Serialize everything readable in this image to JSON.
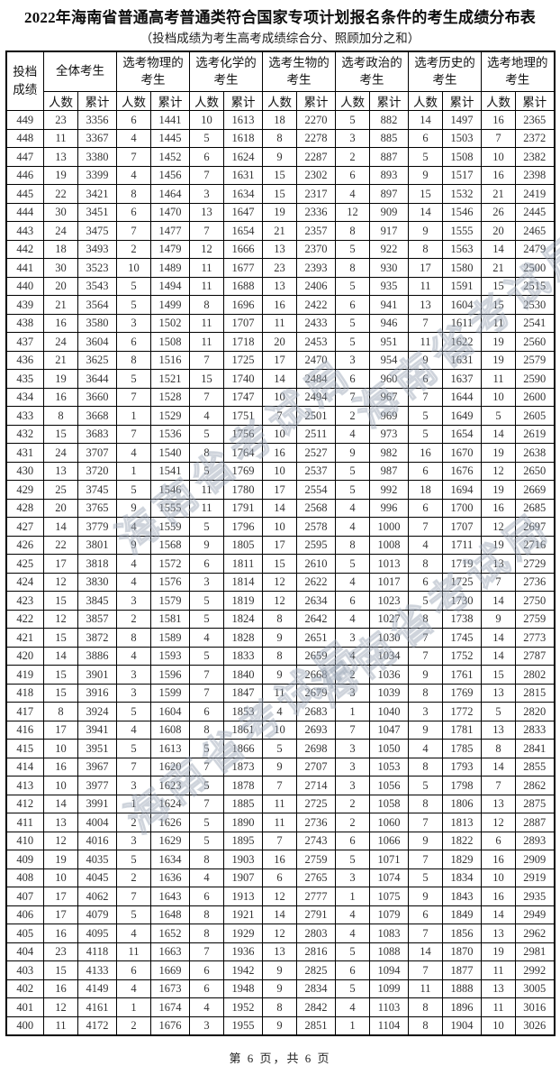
{
  "page": {
    "title": "2022年海南省普通高考普通类符合国家专项计划报名条件的考生成绩分布表",
    "subtitle": "（投档成绩为考生高考成绩综合分、照顾加分之和）",
    "footer": "第 6 页，共 6 页",
    "watermark_text": "海南省考试局"
  },
  "table": {
    "score_header": "投档\n成绩",
    "groups": [
      "全体考生",
      "选考物理的\n考生",
      "选考化学的\n考生",
      "选考生物的\n考生",
      "选考政治的\n考生",
      "选考历史的\n考生",
      "选考地理的\n考生"
    ],
    "sub_headers": {
      "count": "人数",
      "cum": "累计"
    },
    "rows": [
      [
        449,
        23,
        3356,
        6,
        1441,
        10,
        1613,
        18,
        2270,
        5,
        882,
        14,
        1497,
        16,
        2365
      ],
      [
        448,
        11,
        3367,
        4,
        1445,
        5,
        1618,
        8,
        2278,
        3,
        885,
        6,
        1503,
        7,
        2372
      ],
      [
        447,
        13,
        3380,
        7,
        1452,
        6,
        1624,
        9,
        2287,
        2,
        887,
        5,
        1508,
        10,
        2382
      ],
      [
        446,
        19,
        3399,
        4,
        1456,
        7,
        1631,
        15,
        2302,
        6,
        893,
        9,
        1517,
        16,
        2398
      ],
      [
        445,
        22,
        3421,
        8,
        1464,
        3,
        1634,
        15,
        2317,
        4,
        897,
        15,
        1532,
        21,
        2419
      ],
      [
        444,
        30,
        3451,
        6,
        1470,
        13,
        1647,
        19,
        2336,
        12,
        909,
        14,
        1546,
        26,
        2445
      ],
      [
        443,
        24,
        3475,
        7,
        1477,
        7,
        1654,
        21,
        2357,
        8,
        917,
        9,
        1555,
        20,
        2465
      ],
      [
        442,
        18,
        3493,
        2,
        1479,
        12,
        1666,
        13,
        2370,
        5,
        922,
        8,
        1563,
        14,
        2479
      ],
      [
        441,
        30,
        3523,
        10,
        1489,
        11,
        1677,
        23,
        2393,
        8,
        930,
        17,
        1580,
        21,
        2500
      ],
      [
        440,
        20,
        3543,
        5,
        1494,
        11,
        1688,
        13,
        2406,
        5,
        935,
        11,
        1591,
        15,
        2515
      ],
      [
        439,
        21,
        3564,
        5,
        1499,
        8,
        1696,
        16,
        2422,
        6,
        941,
        13,
        1604,
        15,
        2530
      ],
      [
        438,
        16,
        3580,
        3,
        1502,
        11,
        1707,
        11,
        2433,
        5,
        946,
        7,
        1611,
        11,
        2541
      ],
      [
        437,
        24,
        3604,
        6,
        1508,
        11,
        1718,
        20,
        2453,
        5,
        951,
        11,
        1622,
        19,
        2560
      ],
      [
        436,
        21,
        3625,
        8,
        1516,
        7,
        1725,
        17,
        2470,
        3,
        954,
        9,
        1631,
        19,
        2579
      ],
      [
        435,
        19,
        3644,
        5,
        1521,
        15,
        1740,
        14,
        2484,
        6,
        960,
        6,
        1637,
        11,
        2590
      ],
      [
        434,
        16,
        3660,
        7,
        1528,
        7,
        1747,
        10,
        2494,
        7,
        967,
        7,
        1644,
        10,
        2600
      ],
      [
        433,
        8,
        3668,
        1,
        1529,
        4,
        1751,
        7,
        2501,
        2,
        969,
        5,
        1649,
        5,
        2605
      ],
      [
        432,
        15,
        3683,
        7,
        1536,
        5,
        1756,
        10,
        2511,
        4,
        973,
        5,
        1654,
        14,
        2619
      ],
      [
        431,
        24,
        3707,
        4,
        1540,
        8,
        1764,
        16,
        2527,
        9,
        982,
        16,
        1670,
        19,
        2638
      ],
      [
        430,
        13,
        3720,
        1,
        1541,
        5,
        1769,
        10,
        2537,
        5,
        987,
        6,
        1676,
        12,
        2650
      ],
      [
        429,
        25,
        3745,
        5,
        1546,
        11,
        1780,
        17,
        2554,
        5,
        992,
        18,
        1694,
        19,
        2669
      ],
      [
        428,
        20,
        3765,
        9,
        1555,
        11,
        1791,
        14,
        2568,
        4,
        996,
        6,
        1700,
        16,
        2685
      ],
      [
        427,
        14,
        3779,
        4,
        1559,
        5,
        1796,
        10,
        2578,
        4,
        1000,
        7,
        1707,
        12,
        2697
      ],
      [
        426,
        22,
        3801,
        9,
        1568,
        9,
        1805,
        17,
        2595,
        8,
        1008,
        4,
        1711,
        19,
        2716
      ],
      [
        425,
        17,
        3818,
        4,
        1572,
        6,
        1811,
        15,
        2610,
        5,
        1013,
        8,
        1719,
        13,
        2729
      ],
      [
        424,
        12,
        3830,
        4,
        1576,
        3,
        1814,
        12,
        2622,
        4,
        1017,
        6,
        1725,
        7,
        2736
      ],
      [
        423,
        15,
        3845,
        3,
        1579,
        5,
        1819,
        12,
        2634,
        6,
        1023,
        5,
        1730,
        14,
        2750
      ],
      [
        422,
        12,
        3857,
        2,
        1581,
        5,
        1824,
        8,
        2642,
        4,
        1027,
        8,
        1738,
        9,
        2759
      ],
      [
        421,
        15,
        3872,
        8,
        1589,
        4,
        1828,
        9,
        2651,
        3,
        1030,
        7,
        1745,
        14,
        2773
      ],
      [
        420,
        14,
        3886,
        4,
        1593,
        5,
        1833,
        8,
        2659,
        4,
        1034,
        7,
        1752,
        14,
        2787
      ],
      [
        419,
        15,
        3901,
        3,
        1596,
        7,
        1840,
        9,
        2668,
        2,
        1036,
        9,
        1761,
        15,
        2802
      ],
      [
        418,
        15,
        3916,
        3,
        1599,
        7,
        1847,
        11,
        2679,
        3,
        1039,
        8,
        1769,
        13,
        2815
      ],
      [
        417,
        8,
        3924,
        5,
        1604,
        6,
        1853,
        4,
        2683,
        1,
        1040,
        3,
        1772,
        5,
        2820
      ],
      [
        416,
        17,
        3941,
        4,
        1608,
        8,
        1861,
        10,
        2693,
        7,
        1047,
        9,
        1781,
        13,
        2833
      ],
      [
        415,
        10,
        3951,
        5,
        1613,
        5,
        1866,
        5,
        2698,
        3,
        1050,
        4,
        1785,
        8,
        2841
      ],
      [
        414,
        16,
        3967,
        7,
        1620,
        7,
        1873,
        9,
        2707,
        3,
        1053,
        8,
        1793,
        14,
        2855
      ],
      [
        413,
        10,
        3977,
        3,
        1623,
        5,
        1878,
        7,
        2714,
        3,
        1056,
        5,
        1798,
        7,
        2862
      ],
      [
        412,
        14,
        3991,
        1,
        1624,
        7,
        1885,
        11,
        2725,
        2,
        1058,
        8,
        1806,
        13,
        2875
      ],
      [
        411,
        13,
        4004,
        2,
        1626,
        5,
        1890,
        11,
        2736,
        2,
        1060,
        7,
        1813,
        12,
        2887
      ],
      [
        410,
        12,
        4016,
        3,
        1629,
        5,
        1895,
        7,
        2743,
        6,
        1066,
        9,
        1822,
        6,
        2893
      ],
      [
        409,
        19,
        4035,
        5,
        1634,
        8,
        1903,
        16,
        2759,
        5,
        1071,
        7,
        1829,
        16,
        2909
      ],
      [
        408,
        10,
        4045,
        2,
        1636,
        4,
        1907,
        6,
        2765,
        3,
        1074,
        5,
        1834,
        10,
        2919
      ],
      [
        407,
        17,
        4062,
        7,
        1643,
        6,
        1913,
        12,
        2777,
        1,
        1075,
        9,
        1843,
        16,
        2935
      ],
      [
        406,
        17,
        4079,
        5,
        1648,
        8,
        1921,
        14,
        2791,
        4,
        1079,
        6,
        1849,
        14,
        2949
      ],
      [
        405,
        16,
        4095,
        4,
        1652,
        8,
        1929,
        12,
        2803,
        4,
        1083,
        7,
        1856,
        13,
        2962
      ],
      [
        404,
        23,
        4118,
        11,
        1663,
        7,
        1936,
        13,
        2816,
        5,
        1088,
        14,
        1870,
        19,
        2981
      ],
      [
        403,
        15,
        4133,
        6,
        1669,
        6,
        1942,
        9,
        2825,
        6,
        1094,
        7,
        1877,
        11,
        2992
      ],
      [
        402,
        16,
        4149,
        4,
        1673,
        6,
        1948,
        9,
        2834,
        5,
        1099,
        11,
        1888,
        13,
        3005
      ],
      [
        401,
        12,
        4161,
        1,
        1674,
        4,
        1952,
        8,
        2842,
        4,
        1103,
        8,
        1896,
        11,
        3016
      ],
      [
        400,
        11,
        4172,
        2,
        1676,
        3,
        1955,
        9,
        2851,
        1,
        1104,
        8,
        1904,
        10,
        3026
      ]
    ]
  }
}
